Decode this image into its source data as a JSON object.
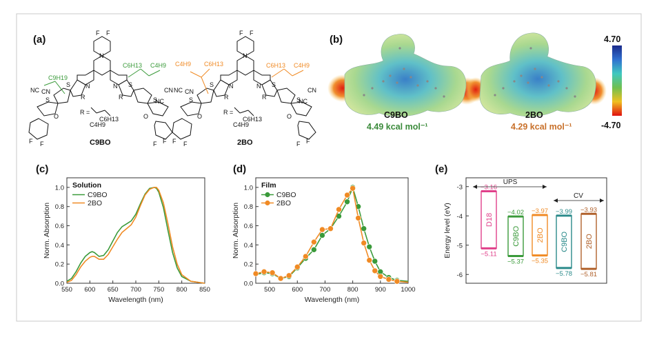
{
  "panels": {
    "a": {
      "label": "(a)",
      "molecule_left": "C9BO",
      "molecule_right": "2BO",
      "atoms": {
        "F": "F",
        "N": "N",
        "S": "S",
        "R": "R",
        "O": "O",
        "NC": "NC",
        "CN": "CN",
        "c9h19": "C9H19",
        "c6h13": "C6H13",
        "c4h9": "C4H9",
        "r_def": "R ="
      }
    },
    "b": {
      "label": "(b)",
      "left_name": "C9BO",
      "left_value": "4.49 kcal mol⁻¹",
      "right_name": "2BO",
      "right_value": "4.29 kcal mol⁻¹",
      "colorbar_max": "4.70",
      "colorbar_min": "-4.70"
    },
    "c": {
      "label": "(c)"
    },
    "d": {
      "label": "(d)"
    },
    "e": {
      "label": "(e)"
    }
  },
  "colors": {
    "c9bo": "#3a9a3a",
    "bo2": "#f08a24",
    "d18": "#e0408a",
    "c9bo_cv": "#2a8a8a",
    "bo2_cv": "#b0602a",
    "green_text": "#3a8a3a",
    "orange_text": "#c8702a"
  },
  "chart_data": [
    {
      "panel": "c",
      "type": "line",
      "legend_title": "Solution",
      "xlabel": "Wavelength (nm)",
      "ylabel": "Norm. Absorption",
      "xlim": [
        550,
        850
      ],
      "ylim": [
        0.0,
        1.1
      ],
      "xticks": [
        "550",
        "600",
        "650",
        "700",
        "750",
        "800",
        "850"
      ],
      "yticks": [
        "0.0",
        "0.2",
        "0.4",
        "0.6",
        "0.8",
        "1.0"
      ],
      "legend_position": "top-left",
      "series": [
        {
          "name": "C9BO",
          "x": [
            550,
            560,
            570,
            580,
            590,
            600,
            605,
            610,
            620,
            630,
            640,
            650,
            660,
            670,
            680,
            690,
            700,
            710,
            720,
            730,
            740,
            745,
            750,
            760,
            770,
            780,
            790,
            800,
            820,
            850
          ],
          "y": [
            0.02,
            0.05,
            0.12,
            0.21,
            0.28,
            0.32,
            0.33,
            0.32,
            0.28,
            0.29,
            0.35,
            0.44,
            0.53,
            0.59,
            0.62,
            0.65,
            0.72,
            0.83,
            0.93,
            0.99,
            1.0,
            0.99,
            0.95,
            0.79,
            0.55,
            0.32,
            0.16,
            0.07,
            0.02,
            0.0
          ]
        },
        {
          "name": "2BO",
          "x": [
            550,
            560,
            570,
            580,
            590,
            600,
            605,
            610,
            620,
            630,
            640,
            650,
            660,
            670,
            680,
            690,
            700,
            710,
            720,
            730,
            740,
            745,
            750,
            760,
            770,
            780,
            790,
            800,
            820,
            850
          ],
          "y": [
            0.01,
            0.03,
            0.09,
            0.17,
            0.23,
            0.27,
            0.28,
            0.28,
            0.25,
            0.25,
            0.3,
            0.38,
            0.46,
            0.53,
            0.57,
            0.61,
            0.69,
            0.81,
            0.92,
            0.98,
            1.0,
            1.0,
            0.97,
            0.84,
            0.62,
            0.38,
            0.2,
            0.09,
            0.02,
            0.0
          ]
        }
      ]
    },
    {
      "panel": "d",
      "type": "line",
      "legend_title": "Film",
      "xlabel": "Wavelength (nm)",
      "ylabel": "Norm. Absorption",
      "xlim": [
        450,
        1000
      ],
      "ylim": [
        0.0,
        1.1
      ],
      "xticks": [
        "500",
        "600",
        "700",
        "800",
        "900",
        "1000"
      ],
      "yticks": [
        "0.0",
        "0.2",
        "0.4",
        "0.6",
        "0.8",
        "1.0"
      ],
      "legend_position": "top-left",
      "series": [
        {
          "name": "C9BO",
          "x": [
            450,
            480,
            510,
            540,
            570,
            600,
            630,
            660,
            690,
            720,
            750,
            780,
            800,
            820,
            840,
            860,
            880,
            900,
            930,
            960,
            1000
          ],
          "y": [
            0.09,
            0.11,
            0.1,
            0.05,
            0.07,
            0.16,
            0.26,
            0.35,
            0.5,
            0.57,
            0.7,
            0.85,
            1.0,
            0.8,
            0.57,
            0.38,
            0.23,
            0.12,
            0.06,
            0.03,
            0.02
          ]
        },
        {
          "name": "2BO",
          "x": [
            450,
            480,
            510,
            540,
            570,
            600,
            630,
            660,
            690,
            720,
            750,
            780,
            800,
            820,
            840,
            860,
            880,
            900,
            930,
            960,
            1000
          ],
          "y": [
            0.1,
            0.12,
            0.11,
            0.05,
            0.08,
            0.17,
            0.28,
            0.43,
            0.56,
            0.57,
            0.77,
            0.92,
            0.99,
            0.68,
            0.42,
            0.24,
            0.13,
            0.07,
            0.04,
            0.02,
            0.01
          ]
        }
      ],
      "markers": {
        "C9BO": [
          480,
          510,
          540,
          570,
          600,
          630,
          660,
          690,
          720,
          750,
          780,
          800,
          820,
          840,
          860,
          880,
          900,
          930,
          960
        ],
        "2BO": [
          450,
          480,
          510,
          540,
          570,
          600,
          630,
          660,
          690,
          720,
          750,
          780,
          800,
          820,
          840,
          860,
          880,
          900,
          930,
          960
        ]
      }
    },
    {
      "panel": "e",
      "type": "bar",
      "ylabel": "Energy level (eV)",
      "ylim": [
        -6.3,
        -2.7
      ],
      "yticks": [
        "-3",
        "-4",
        "-5",
        "-6"
      ],
      "group_labels": [
        "UPS",
        "CV"
      ],
      "bars": [
        {
          "name": "D18",
          "lumo": -3.16,
          "homo": -5.11,
          "lumo_label": "−3.16",
          "homo_label": "−5.11"
        },
        {
          "name": "C9BO",
          "lumo": -4.02,
          "homo": -5.37,
          "lumo_label": "−4.02",
          "homo_label": "−5.37"
        },
        {
          "name": "2BO",
          "lumo": -3.97,
          "homo": -5.35,
          "lumo_label": "−3.97",
          "homo_label": "−5.35"
        },
        {
          "name": "C9BO",
          "lumo": -3.99,
          "homo": -5.78,
          "lumo_label": "−3.99",
          "homo_label": "−5.78"
        },
        {
          "name": "2BO",
          "lumo": -3.93,
          "homo": -5.81,
          "lumo_label": "−3.93",
          "homo_label": "−5.81"
        }
      ]
    }
  ]
}
